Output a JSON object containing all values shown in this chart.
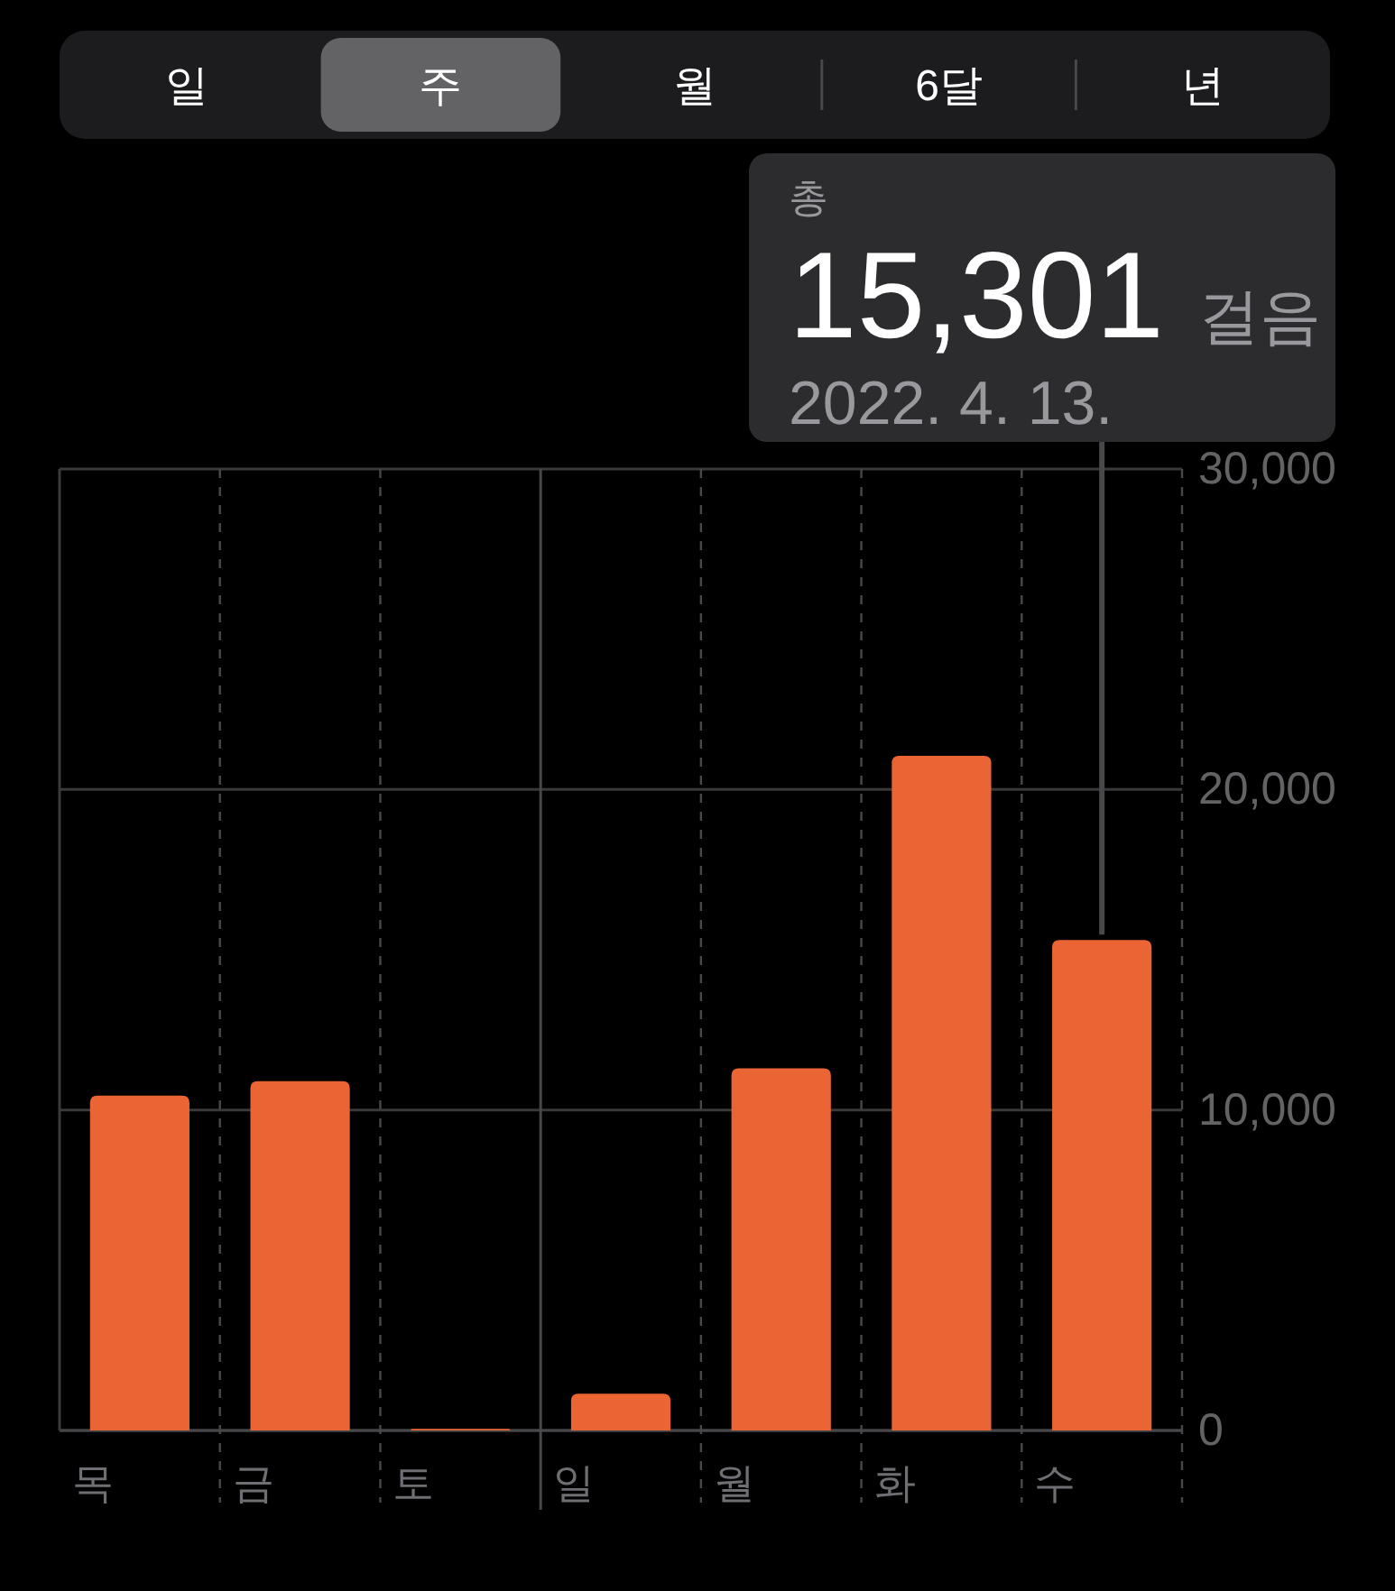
{
  "chart_data": [
    {
      "type": "other",
      "annotations": [
        "일",
        "주",
        "월",
        "6달",
        "년"
      ]
    },
    {
      "type": "bar",
      "categories": [
        "목",
        "금",
        "토",
        "일",
        "월",
        "화",
        "수"
      ],
      "values": [
        10450,
        10900,
        50,
        1150,
        11300,
        21050,
        15301
      ],
      "color": "#eb6534",
      "ylim": [
        0,
        30000
      ],
      "yticks": [
        0,
        {
          "value": 10000,
          "label": "10,000"
        },
        {
          "value": 20000,
          "label": "20,000"
        },
        {
          "value": 30000,
          "label": "30,000"
        }
      ],
      "grid": true,
      "ref_lines": [
        {
          "axis": "x",
          "value": "일",
          "line_style": "solid"
        }
      ],
      "annotations": [
        "총",
        "15,301 걸음",
        "2022. 4. 13."
      ]
    }
  ]
}
